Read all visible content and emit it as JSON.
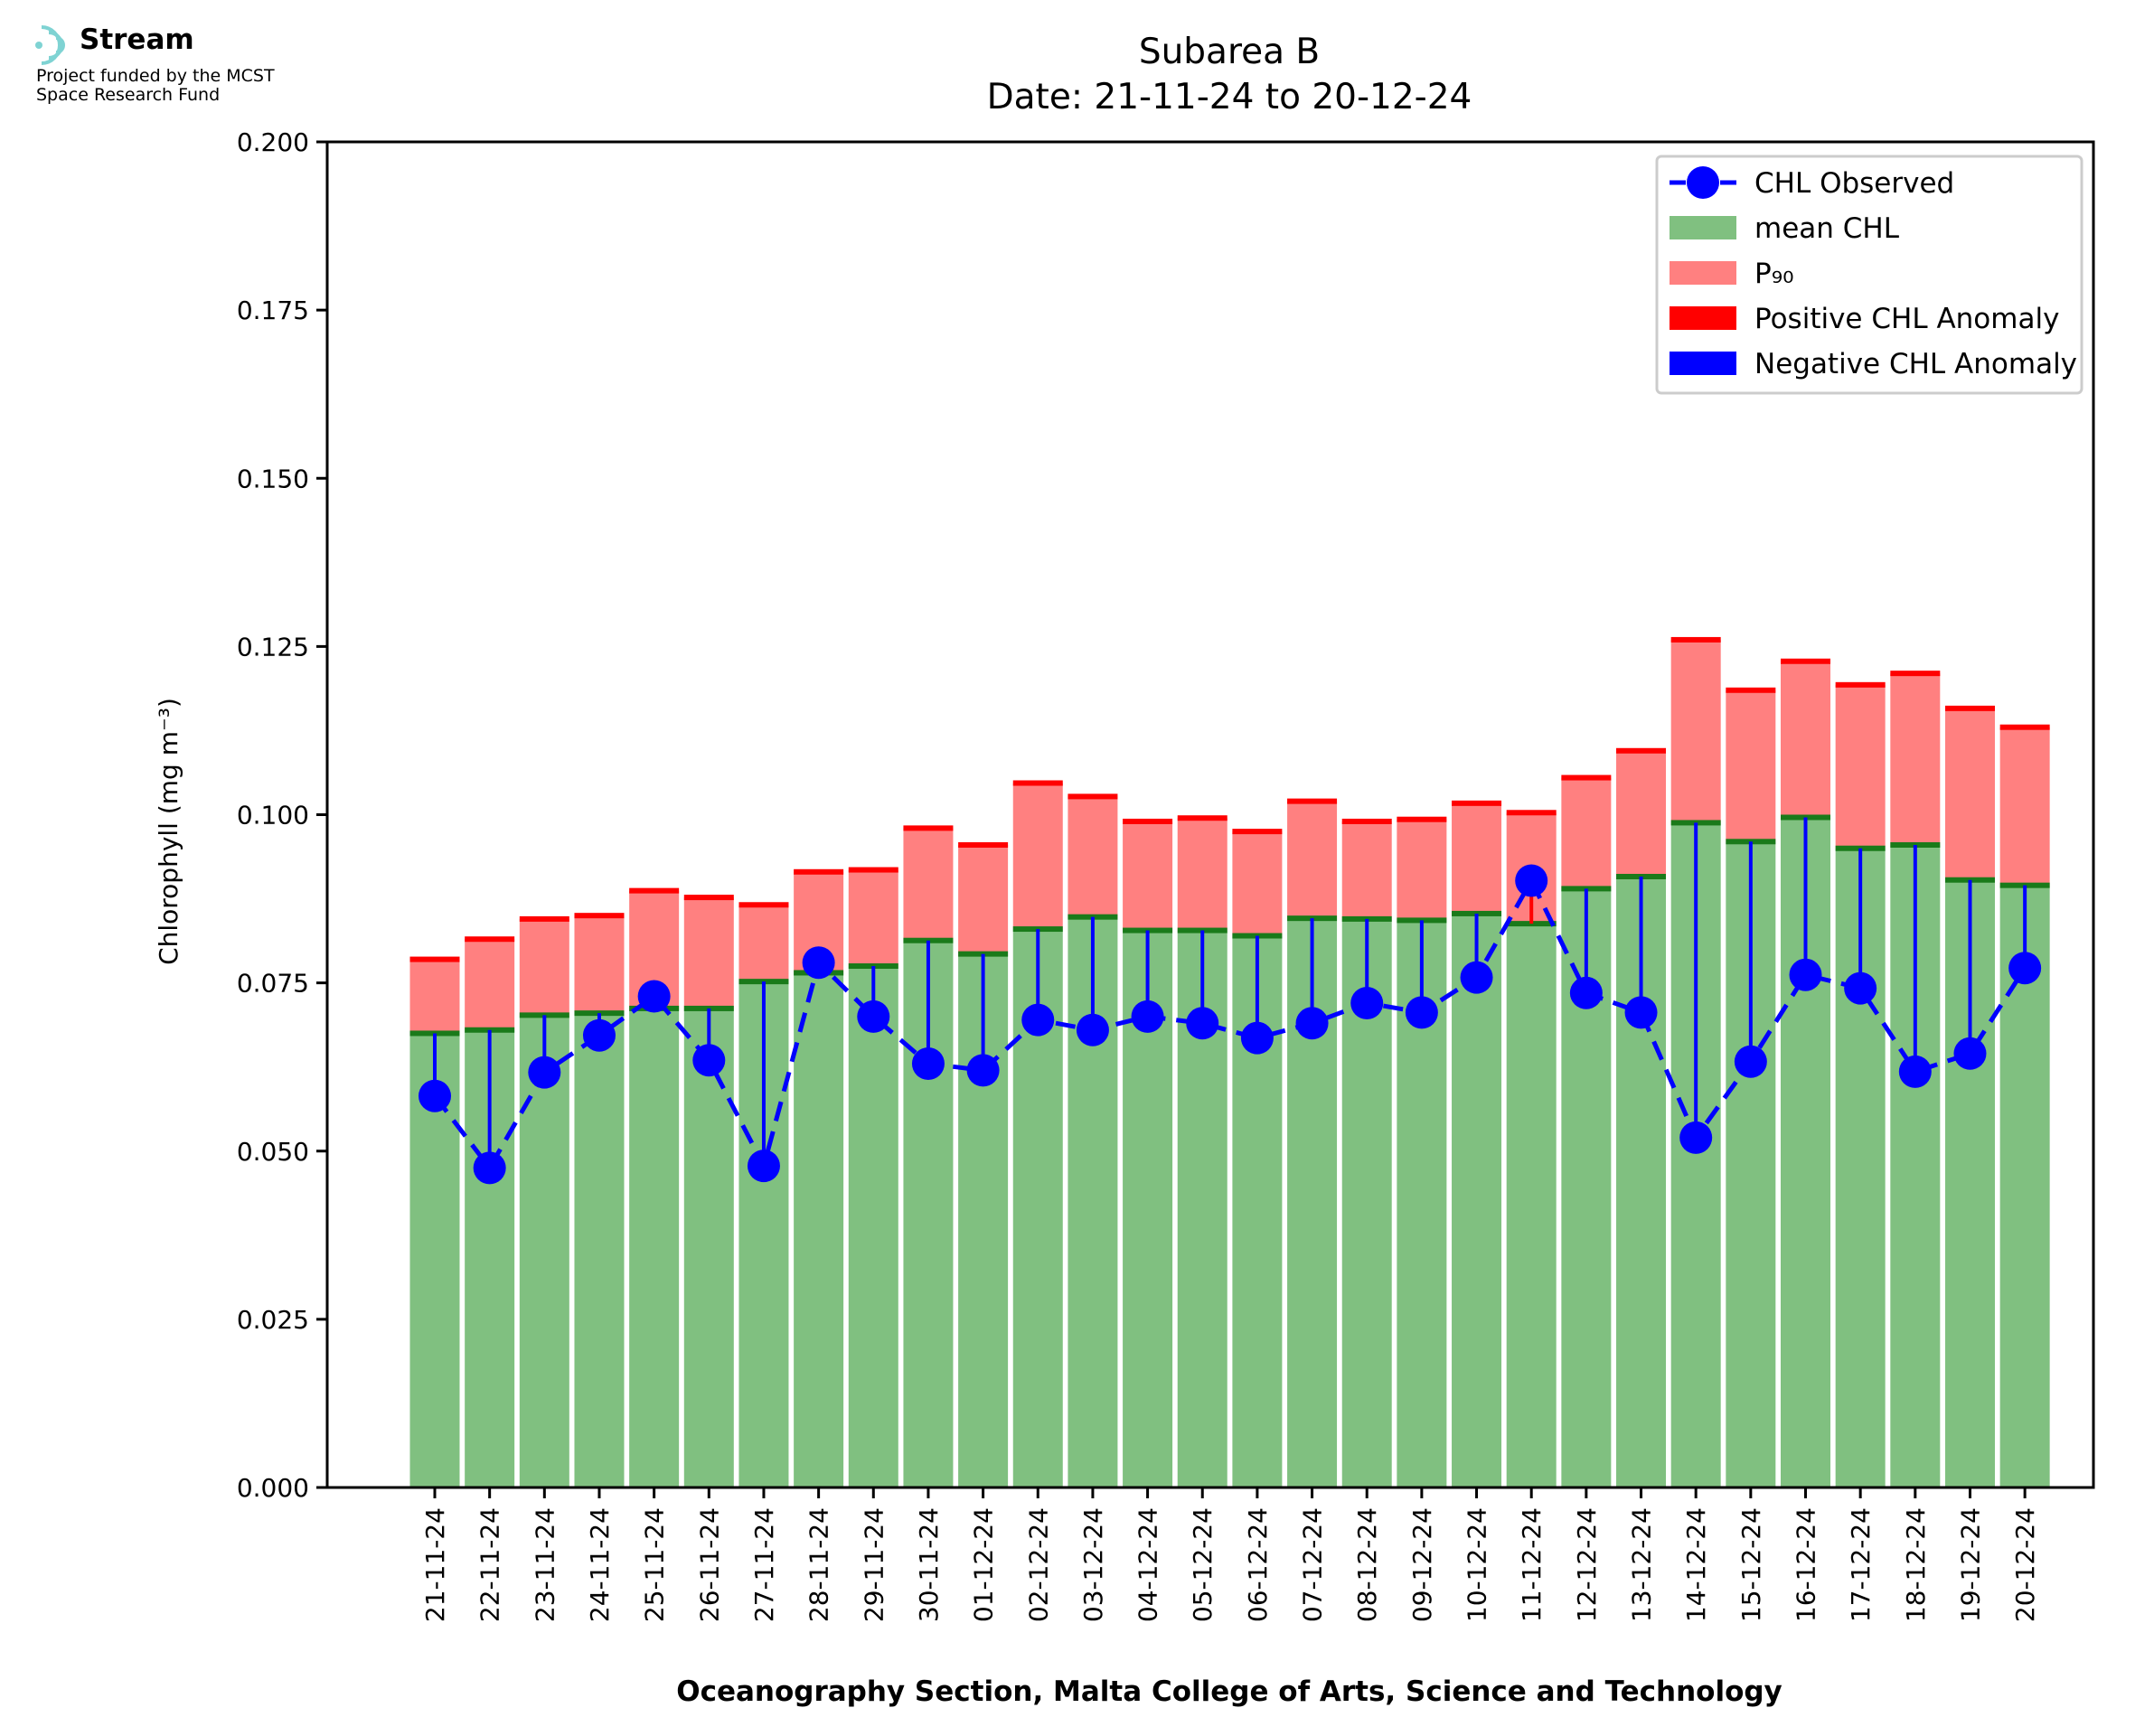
{
  "brand": {
    "name": "Stream",
    "subtitle_line1": "Project funded by the MCST",
    "subtitle_line2": "Space Research Fund",
    "accent": "#7fd3d3"
  },
  "chart_data": {
    "type": "bar",
    "title": "Subarea B",
    "subtitle": "Date: 21-11-24 to 20-12-24",
    "xlabel": "Oceanography Section, Malta College of Arts, Science and Technology",
    "ylabel": "Chlorophyll (mg m⁻³)",
    "ylim": [
      0,
      0.2
    ],
    "yticks": [
      "0.000",
      "0.025",
      "0.050",
      "0.075",
      "0.100",
      "0.125",
      "0.150",
      "0.175",
      "0.200"
    ],
    "categories": [
      "21-11-24",
      "22-11-24",
      "23-11-24",
      "24-11-24",
      "25-11-24",
      "26-11-24",
      "27-11-24",
      "28-11-24",
      "29-11-24",
      "30-11-24",
      "01-12-24",
      "02-12-24",
      "03-12-24",
      "04-12-24",
      "05-12-24",
      "06-12-24",
      "07-12-24",
      "08-12-24",
      "09-12-24",
      "10-12-24",
      "11-12-24",
      "12-12-24",
      "13-12-24",
      "14-12-24",
      "15-12-24",
      "16-12-24",
      "17-12-24",
      "18-12-24",
      "19-12-24",
      "20-12-24"
    ],
    "legend_position": "top-right",
    "series": [
      {
        "name": "mean CHL",
        "color": "#80c080",
        "values": [
          0.0675,
          0.068,
          0.0702,
          0.0705,
          0.0712,
          0.0712,
          0.0752,
          0.0765,
          0.0775,
          0.0813,
          0.0793,
          0.083,
          0.0848,
          0.0828,
          0.0828,
          0.082,
          0.0846,
          0.0845,
          0.0843,
          0.0853,
          0.0838,
          0.089,
          0.0908,
          0.0988,
          0.096,
          0.0996,
          0.095,
          0.0955,
          0.0903,
          0.0895
        ]
      },
      {
        "name": "P₉₀",
        "color": "#ff8080",
        "values": [
          0.0785,
          0.0815,
          0.0845,
          0.085,
          0.0887,
          0.0877,
          0.0866,
          0.0915,
          0.0918,
          0.098,
          0.0955,
          0.1047,
          0.1027,
          0.099,
          0.0995,
          0.0975,
          0.102,
          0.099,
          0.0993,
          0.1017,
          0.1003,
          0.1055,
          0.1095,
          0.126,
          0.1185,
          0.1228,
          0.1193,
          0.121,
          0.1158,
          0.113
        ]
      },
      {
        "name": "CHL Observed",
        "color": "#0000ff",
        "values": [
          0.0582,
          0.0475,
          0.0617,
          0.0672,
          0.073,
          0.0635,
          0.0478,
          0.078,
          0.07,
          0.063,
          0.062,
          0.0695,
          0.068,
          0.07,
          0.069,
          0.0668,
          0.069,
          0.072,
          0.0706,
          0.0758,
          0.0902,
          0.0735,
          0.0706,
          0.052,
          0.0633,
          0.0762,
          0.0742,
          0.0618,
          0.0645,
          0.0772
        ]
      }
    ],
    "legend": [
      {
        "label": "CHL Observed",
        "kind": "line-marker",
        "color": "#0000ff"
      },
      {
        "label": "mean CHL",
        "kind": "patch",
        "color": "#80c080"
      },
      {
        "label": "P₉₀",
        "kind": "patch",
        "color": "#ff8080"
      },
      {
        "label": "Positive CHL Anomaly",
        "kind": "patch",
        "color": "#ff0000"
      },
      {
        "label": "Negative CHL Anomaly",
        "kind": "patch",
        "color": "#0000ff"
      }
    ]
  }
}
